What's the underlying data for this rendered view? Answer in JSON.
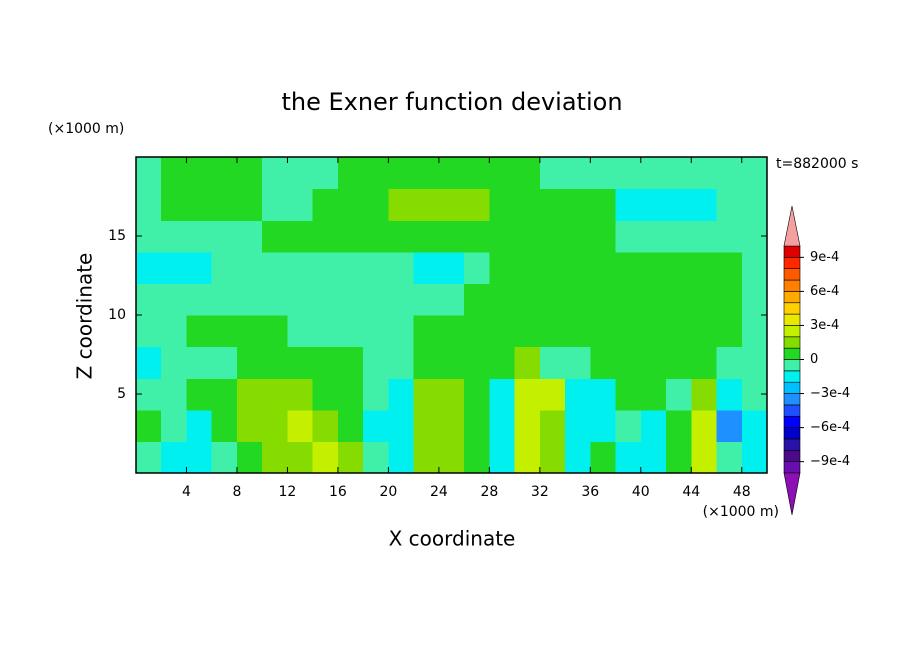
{
  "chart_data": {
    "type": "contour",
    "title": "the Exner function deviation",
    "xlabel": "X coordinate",
    "ylabel": "Z coordinate",
    "xunit": "(×1000 m)",
    "yunit": "(×1000 m)",
    "annotation": "t=882000 s",
    "xlim": [
      0,
      50
    ],
    "ylim": [
      0,
      20
    ],
    "xticks": [
      4,
      8,
      12,
      16,
      20,
      24,
      28,
      32,
      36,
      40,
      44,
      48
    ],
    "yticks": [
      5,
      10,
      15
    ],
    "x": [
      1,
      3,
      5,
      7,
      9,
      11,
      13,
      15,
      17,
      19,
      21,
      23,
      25,
      27,
      29,
      31,
      33,
      35,
      37,
      39,
      41,
      43,
      45,
      47,
      49
    ],
    "y": [
      1,
      3,
      5,
      7,
      9,
      11,
      13,
      15,
      17,
      19
    ],
    "z": [
      [
        -5e-05,
        -0.00015,
        -0.00015,
        -5e-05,
        5e-05,
        0.00015,
        0.00015,
        0.00025,
        0.00015,
        -5e-05,
        -0.00015,
        0.00015,
        0.00015,
        5e-05,
        -0.00015,
        0.00025,
        0.00015,
        -0.00015,
        5e-05,
        -0.00015,
        -0.00015,
        5e-05,
        0.00025,
        -5e-05,
        -0.00015
      ],
      [
        5e-05,
        -5e-05,
        -0.00015,
        5e-05,
        0.00015,
        0.00015,
        0.00025,
        0.00015,
        5e-05,
        -0.00015,
        -0.00015,
        0.00015,
        0.00015,
        5e-05,
        -0.00015,
        0.00025,
        0.00015,
        -0.00015,
        -0.00015,
        -5e-05,
        -0.00015,
        5e-05,
        0.00025,
        -0.00035,
        -0.00015
      ],
      [
        -5e-05,
        -5e-05,
        5e-05,
        5e-05,
        0.00015,
        0.00015,
        0.00015,
        5e-05,
        5e-05,
        -5e-05,
        -0.00015,
        0.00015,
        0.00015,
        5e-05,
        -0.00015,
        0.00025,
        0.00025,
        -0.00015,
        -0.00015,
        5e-05,
        5e-05,
        -5e-05,
        0.00015,
        -0.00015,
        -5e-05
      ],
      [
        -0.00015,
        -5e-05,
        -5e-05,
        -5e-05,
        5e-05,
        5e-05,
        5e-05,
        5e-05,
        5e-05,
        -5e-05,
        -5e-05,
        5e-05,
        5e-05,
        5e-05,
        5e-05,
        0.00015,
        -5e-05,
        -5e-05,
        5e-05,
        5e-05,
        5e-05,
        5e-05,
        5e-05,
        -5e-05,
        -5e-05
      ],
      [
        -5e-05,
        -5e-05,
        5e-05,
        5e-05,
        5e-05,
        5e-05,
        -5e-05,
        -5e-05,
        -5e-05,
        -5e-05,
        -5e-05,
        5e-05,
        5e-05,
        5e-05,
        5e-05,
        5e-05,
        5e-05,
        5e-05,
        5e-05,
        5e-05,
        5e-05,
        5e-05,
        5e-05,
        5e-05,
        -5e-05
      ],
      [
        -5e-05,
        -5e-05,
        -5e-05,
        -5e-05,
        -5e-05,
        -5e-05,
        -5e-05,
        -5e-05,
        -5e-05,
        -5e-05,
        -5e-05,
        -5e-05,
        -5e-05,
        5e-05,
        5e-05,
        5e-05,
        5e-05,
        5e-05,
        5e-05,
        5e-05,
        5e-05,
        5e-05,
        5e-05,
        5e-05,
        -5e-05
      ],
      [
        -0.00015,
        -0.00015,
        -0.00015,
        -5e-05,
        -5e-05,
        -5e-05,
        -5e-05,
        -5e-05,
        -5e-05,
        -5e-05,
        -5e-05,
        -0.00015,
        -0.00015,
        -5e-05,
        5e-05,
        5e-05,
        5e-05,
        5e-05,
        5e-05,
        5e-05,
        5e-05,
        5e-05,
        5e-05,
        5e-05,
        -5e-05
      ],
      [
        -5e-05,
        -5e-05,
        -5e-05,
        -5e-05,
        -5e-05,
        5e-05,
        5e-05,
        5e-05,
        5e-05,
        5e-05,
        5e-05,
        5e-05,
        5e-05,
        5e-05,
        5e-05,
        5e-05,
        5e-05,
        5e-05,
        5e-05,
        -5e-05,
        -5e-05,
        -5e-05,
        -5e-05,
        -5e-05,
        -5e-05
      ],
      [
        -5e-05,
        5e-05,
        5e-05,
        5e-05,
        5e-05,
        -5e-05,
        -5e-05,
        5e-05,
        5e-05,
        5e-05,
        0.00015,
        0.00015,
        0.00015,
        0.00015,
        5e-05,
        5e-05,
        5e-05,
        5e-05,
        5e-05,
        -0.00015,
        -0.00015,
        -0.00015,
        -0.00015,
        -5e-05,
        -5e-05
      ],
      [
        -5e-05,
        5e-05,
        5e-05,
        5e-05,
        5e-05,
        -5e-05,
        -5e-05,
        -5e-05,
        5e-05,
        5e-05,
        5e-05,
        5e-05,
        5e-05,
        5e-05,
        5e-05,
        5e-05,
        -5e-05,
        -5e-05,
        -5e-05,
        -5e-05,
        -5e-05,
        -5e-05,
        -5e-05,
        -5e-05,
        -5e-05
      ]
    ],
    "levels": [
      -0.001,
      -0.0009,
      -0.0008,
      -0.0007,
      -0.0006,
      -0.0005,
      -0.0004,
      -0.0003,
      -0.0002,
      -0.0001,
      0,
      0.0001,
      0.0002,
      0.0003,
      0.0004,
      0.0005,
      0.0006,
      0.0007,
      0.0008,
      0.0009,
      0.001
    ],
    "colors": [
      "#6a0dad",
      "#4b0a8a",
      "#2a12a8",
      "#0000c8",
      "#0000ff",
      "#1e50ff",
      "#1e90ff",
      "#00bfff",
      "#00f0f0",
      "#40f0a8",
      "#22d822",
      "#86dc00",
      "#c4f000",
      "#e8e800",
      "#ffd000",
      "#ffaa00",
      "#ff8000",
      "#ff5a00",
      "#ff2800",
      "#e00000"
    ],
    "under_color": "#8c10b4",
    "over_color": "#f4a0a0",
    "cbar_ticks": [
      {
        "value": 0.0009,
        "label": "9e-4"
      },
      {
        "value": 0.0006,
        "label": "6e-4"
      },
      {
        "value": 0.0003,
        "label": "3e-4"
      },
      0,
      {
        "value": -0.0003,
        "label": "−3e-4"
      },
      {
        "value": -0.0006,
        "label": "−6e-4"
      },
      {
        "value": -0.0009,
        "label": "−9e-4"
      }
    ]
  }
}
